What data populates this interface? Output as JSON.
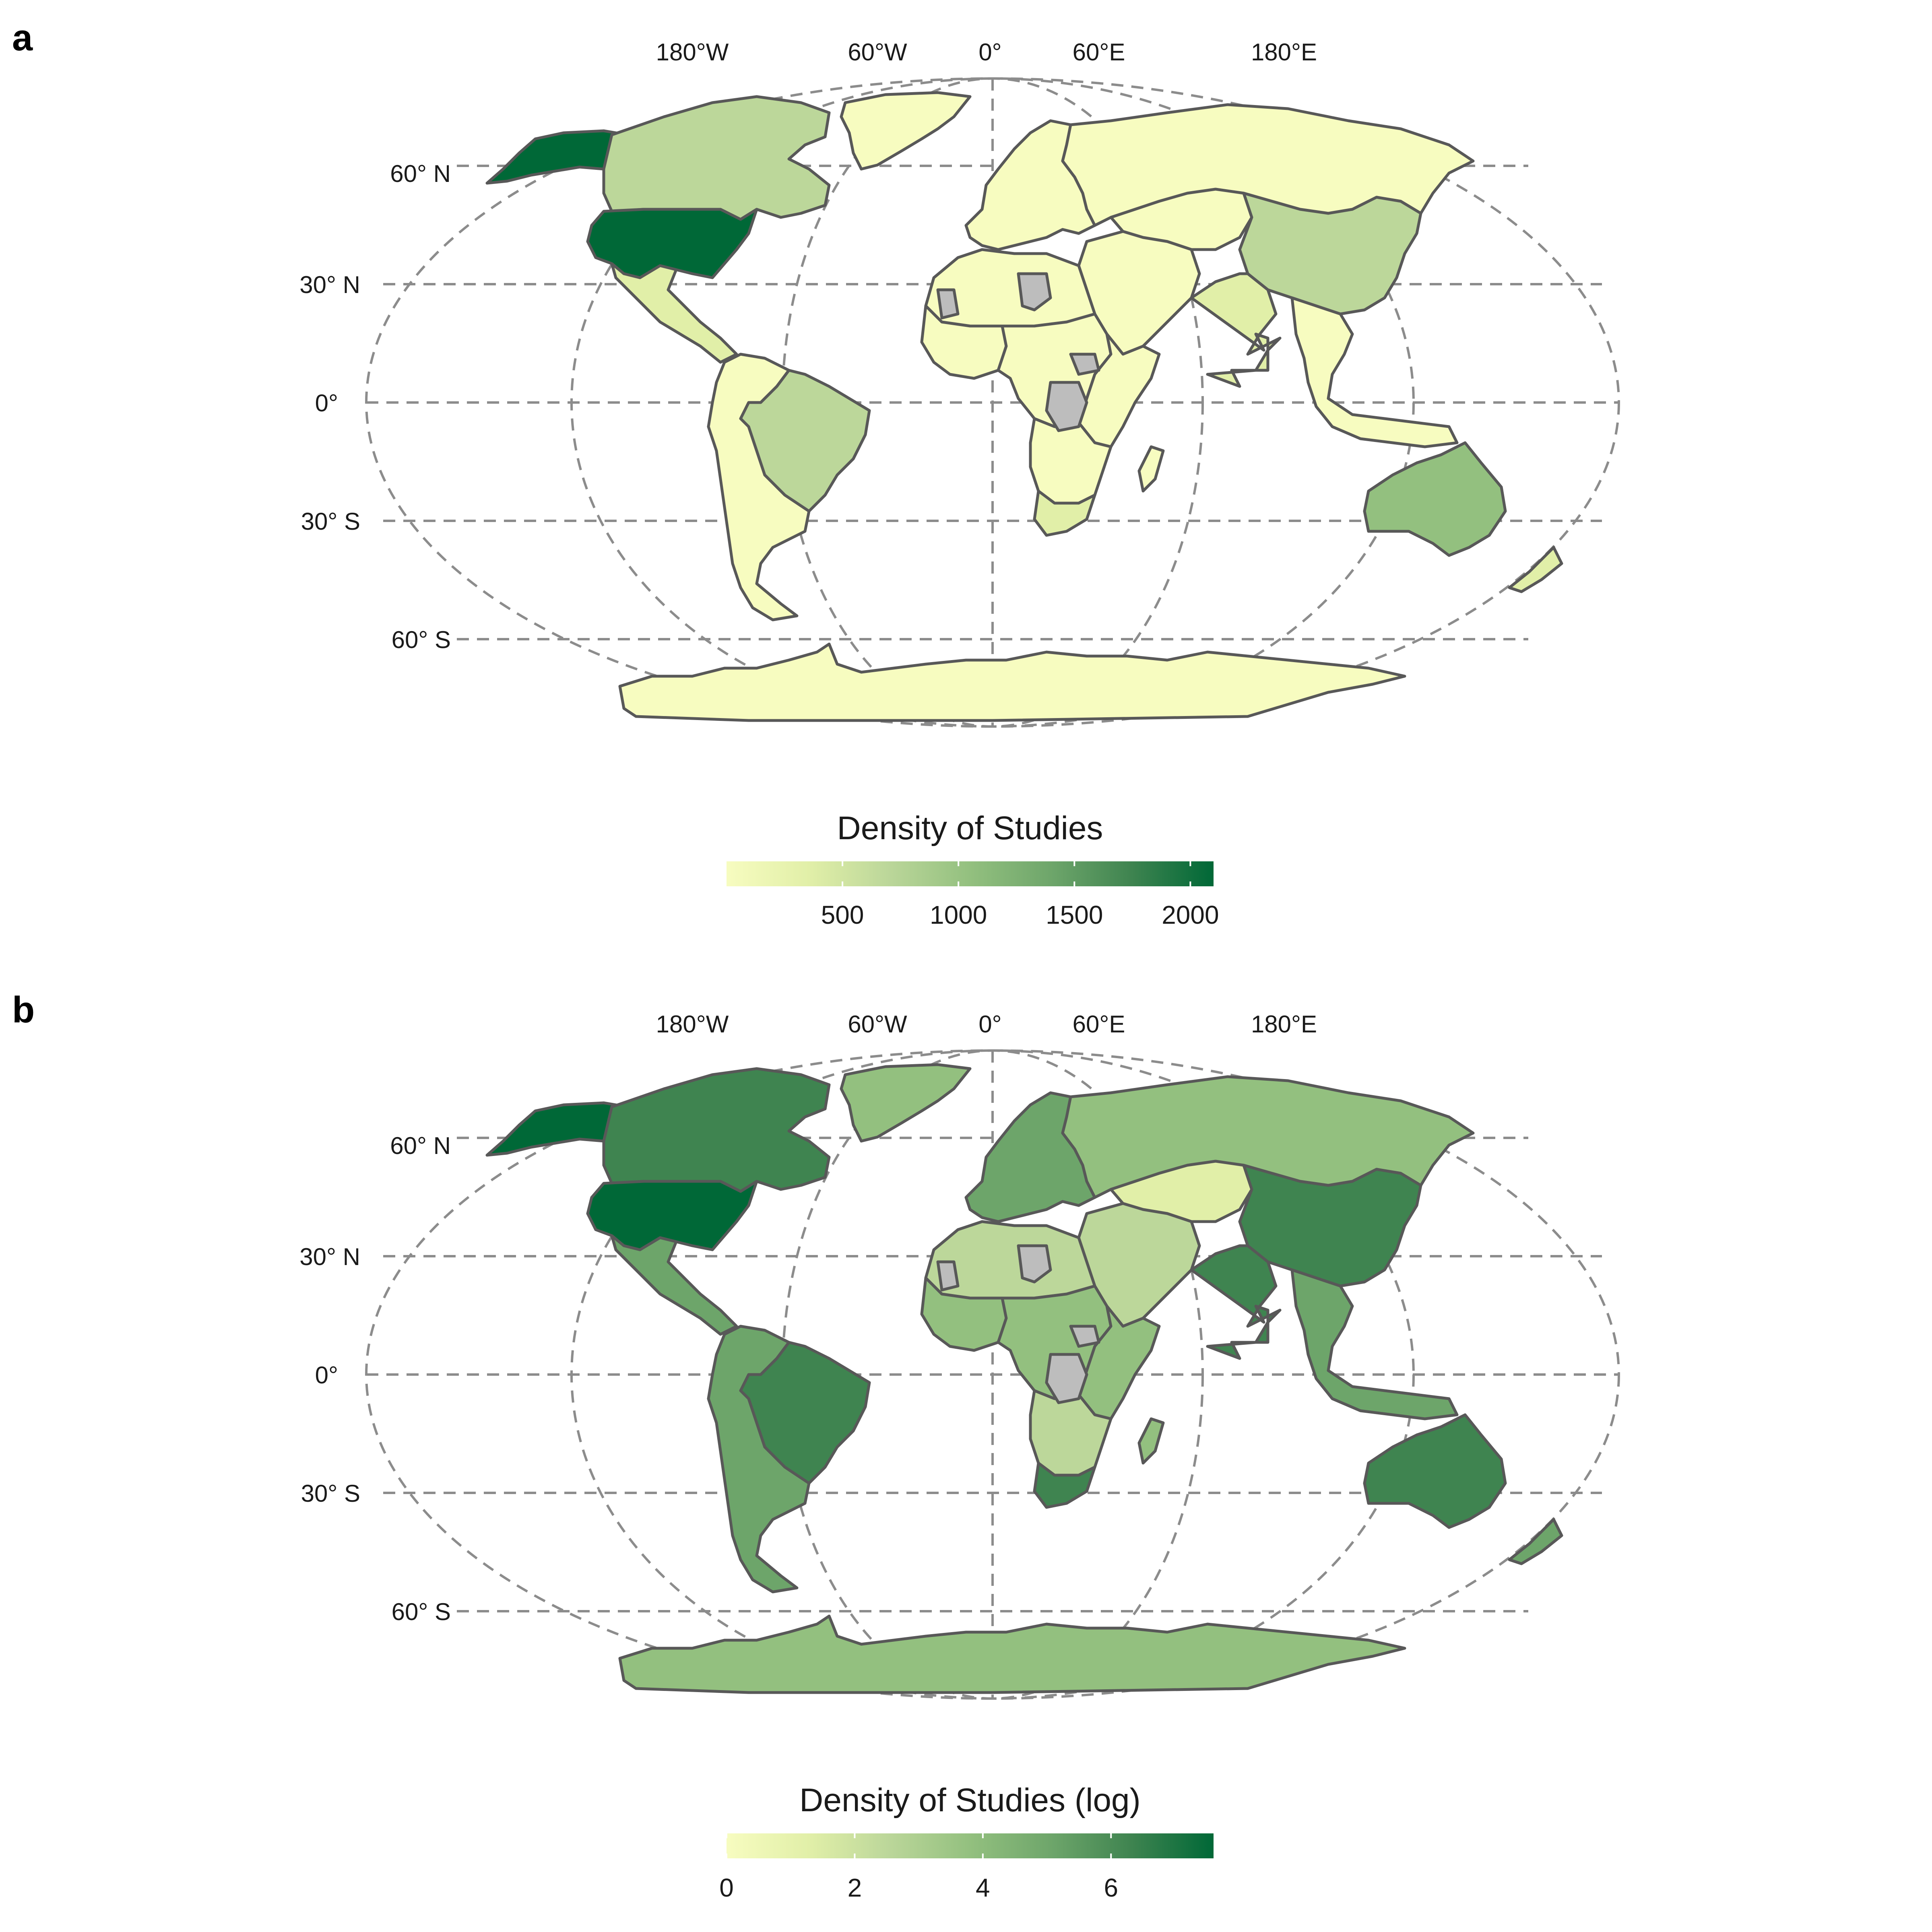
{
  "colors": {
    "scale": [
      "#f7fcc0",
      "#e1efa8",
      "#bcd79a",
      "#93c07f",
      "#6da56a",
      "#3f8450",
      "#006837"
    ],
    "no_data": "#bdbdbd",
    "border": "#585858",
    "grid": "#8c8c8c"
  },
  "panels": [
    {
      "letter": "a",
      "lon_labels": [
        "180°W",
        "60°W",
        "0°",
        "60°E",
        "180°E"
      ],
      "lat_labels": [
        "60° N",
        "30° N",
        "0°",
        "30° S",
        "60° S"
      ],
      "legend": {
        "title": "Density of Studies",
        "ticks": [
          "500",
          "1000",
          "1500",
          "2000"
        ],
        "tick_values": [
          500,
          1000,
          1500,
          2000
        ],
        "range": [
          0,
          2100
        ]
      },
      "regions": [
        {
          "name": "alaska",
          "level": 6
        },
        {
          "name": "canada",
          "level": 2
        },
        {
          "name": "usa",
          "level": 6
        },
        {
          "name": "mexico",
          "level": 1
        },
        {
          "name": "greenland",
          "level": 0
        },
        {
          "name": "brazil",
          "level": 2
        },
        {
          "name": "south-america-rest",
          "level": 0
        },
        {
          "name": "europe",
          "level": 0
        },
        {
          "name": "russia",
          "level": 0
        },
        {
          "name": "central-asia",
          "level": 0
        },
        {
          "name": "china",
          "level": 2
        },
        {
          "name": "india",
          "level": 1
        },
        {
          "name": "southeast-asia",
          "level": 0
        },
        {
          "name": "middle-east",
          "level": 0
        },
        {
          "name": "north-africa",
          "level": 0
        },
        {
          "name": "west-africa",
          "level": 0
        },
        {
          "name": "central-africa",
          "level": 0
        },
        {
          "name": "east-africa",
          "level": 0
        },
        {
          "name": "southern-africa",
          "level": 0
        },
        {
          "name": "south-africa",
          "level": 1
        },
        {
          "name": "australia",
          "level": 3
        },
        {
          "name": "new-zealand",
          "level": 1
        },
        {
          "name": "antarctica",
          "level": 0
        }
      ]
    },
    {
      "letter": "b",
      "lon_labels": [
        "180°W",
        "60°W",
        "0°",
        "60°E",
        "180°E"
      ],
      "lat_labels": [
        "60° N",
        "30° N",
        "0°",
        "30° S",
        "60° S"
      ],
      "legend": {
        "title": "Density of Studies (log)",
        "ticks": [
          "0",
          "2",
          "4",
          "6"
        ],
        "tick_values": [
          0,
          2,
          4,
          6
        ],
        "range": [
          0,
          7.6
        ]
      },
      "regions": [
        {
          "name": "alaska",
          "level": 6
        },
        {
          "name": "canada",
          "level": 5
        },
        {
          "name": "usa",
          "level": 6
        },
        {
          "name": "mexico",
          "level": 4
        },
        {
          "name": "greenland",
          "level": 3
        },
        {
          "name": "brazil",
          "level": 5
        },
        {
          "name": "south-america-rest",
          "level": 4
        },
        {
          "name": "europe",
          "level": 4
        },
        {
          "name": "russia",
          "level": 3
        },
        {
          "name": "central-asia",
          "level": 1
        },
        {
          "name": "china",
          "level": 5
        },
        {
          "name": "india",
          "level": 5
        },
        {
          "name": "southeast-asia",
          "level": 4
        },
        {
          "name": "middle-east",
          "level": 2
        },
        {
          "name": "north-africa",
          "level": 2
        },
        {
          "name": "west-africa",
          "level": 3
        },
        {
          "name": "central-africa",
          "level": 3
        },
        {
          "name": "east-africa",
          "level": 3
        },
        {
          "name": "southern-africa",
          "level": 2
        },
        {
          "name": "south-africa",
          "level": 5
        },
        {
          "name": "australia",
          "level": 5
        },
        {
          "name": "new-zealand",
          "level": 4
        },
        {
          "name": "antarctica",
          "level": 3
        }
      ]
    }
  ]
}
